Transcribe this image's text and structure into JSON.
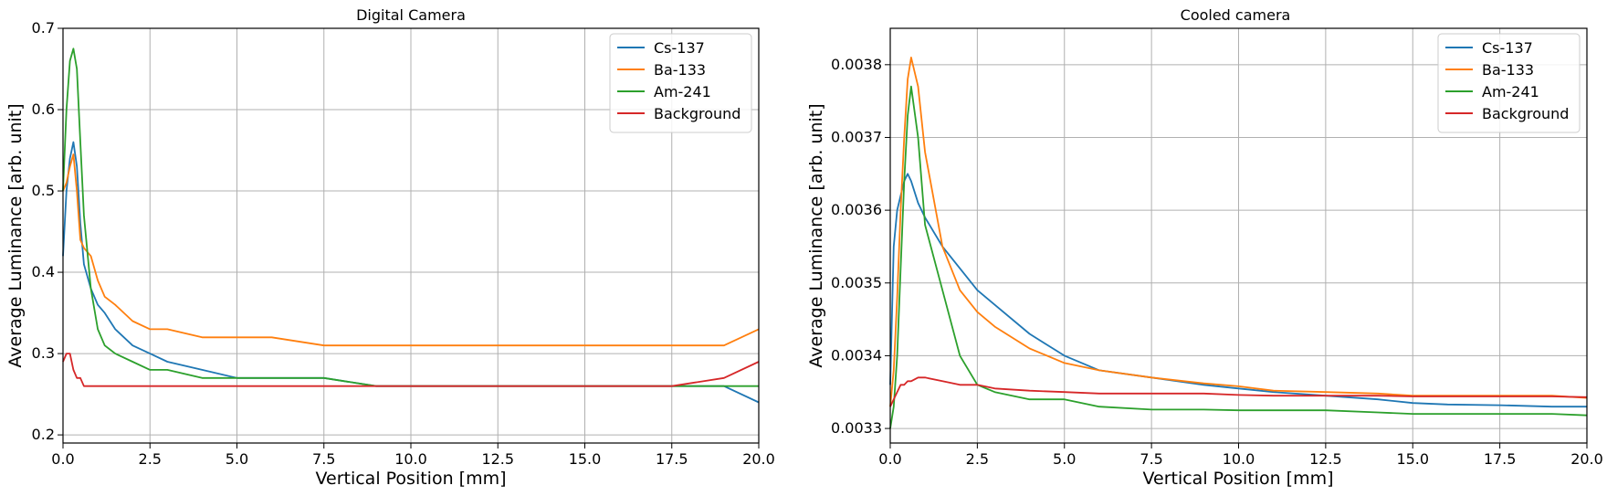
{
  "chart_data": [
    {
      "type": "line",
      "title": "Digital Camera",
      "xlabel": "Vertical Position [mm]",
      "ylabel": "Average Luminance [arb. unit]",
      "xlim": [
        0,
        20
      ],
      "ylim": [
        0.19,
        0.7
      ],
      "xticks": [
        "0.0",
        "2.5",
        "5.0",
        "7.5",
        "10.0",
        "12.5",
        "15.0",
        "17.5",
        "20.0"
      ],
      "yticks": [
        "0.2",
        "0.3",
        "0.4",
        "0.5",
        "0.6",
        "0.7"
      ],
      "xtick_values": [
        0,
        2.5,
        5,
        7.5,
        10,
        12.5,
        15,
        17.5,
        20
      ],
      "ytick_values": [
        0.2,
        0.3,
        0.4,
        0.5,
        0.6,
        0.7
      ],
      "grid": true,
      "legend": "top-right",
      "series": [
        {
          "name": "Cs-137",
          "color": "#1f77b4",
          "x": [
            0,
            0.1,
            0.2,
            0.3,
            0.4,
            0.5,
            0.6,
            0.8,
            1.0,
            1.2,
            1.5,
            2.0,
            2.5,
            3.0,
            4.0,
            5.0,
            6.0,
            7.5,
            9.0,
            10.0,
            11.0,
            12.5,
            14.0,
            15.0,
            16.0,
            17.5,
            19.0,
            20.0
          ],
          "y": [
            0.42,
            0.5,
            0.54,
            0.56,
            0.53,
            0.46,
            0.41,
            0.38,
            0.36,
            0.35,
            0.33,
            0.31,
            0.3,
            0.29,
            0.28,
            0.27,
            0.27,
            0.27,
            0.26,
            0.26,
            0.26,
            0.26,
            0.26,
            0.26,
            0.26,
            0.26,
            0.26,
            0.24
          ]
        },
        {
          "name": "Ba-133",
          "color": "#ff7f0e",
          "x": [
            0,
            0.1,
            0.2,
            0.3,
            0.4,
            0.5,
            0.6,
            0.8,
            1.0,
            1.2,
            1.5,
            2.0,
            2.5,
            3.0,
            4.0,
            5.0,
            6.0,
            7.5,
            9.0,
            10.0,
            11.0,
            12.5,
            14.0,
            15.0,
            16.0,
            17.5,
            19.0,
            20.0
          ],
          "y": [
            0.5,
            0.51,
            0.53,
            0.545,
            0.5,
            0.44,
            0.43,
            0.42,
            0.39,
            0.37,
            0.36,
            0.34,
            0.33,
            0.33,
            0.32,
            0.32,
            0.32,
            0.31,
            0.31,
            0.31,
            0.31,
            0.31,
            0.31,
            0.31,
            0.31,
            0.31,
            0.31,
            0.33
          ]
        },
        {
          "name": "Am-241",
          "color": "#2ca02c",
          "x": [
            0,
            0.1,
            0.2,
            0.3,
            0.4,
            0.5,
            0.6,
            0.8,
            1.0,
            1.2,
            1.5,
            2.0,
            2.5,
            3.0,
            4.0,
            5.0,
            6.0,
            7.5,
            9.0,
            10.0,
            11.0,
            12.5,
            14.0,
            15.0,
            16.0,
            17.5,
            19.0,
            20.0
          ],
          "y": [
            0.5,
            0.6,
            0.66,
            0.675,
            0.65,
            0.56,
            0.47,
            0.38,
            0.33,
            0.31,
            0.3,
            0.29,
            0.28,
            0.28,
            0.27,
            0.27,
            0.27,
            0.27,
            0.26,
            0.26,
            0.26,
            0.26,
            0.26,
            0.26,
            0.26,
            0.26,
            0.26,
            0.26
          ]
        },
        {
          "name": "Background",
          "color": "#d62728",
          "x": [
            0,
            0.1,
            0.2,
            0.3,
            0.4,
            0.5,
            0.6,
            0.8,
            1.0,
            1.2,
            1.5,
            2.0,
            2.5,
            3.0,
            4.0,
            5.0,
            6.0,
            7.5,
            9.0,
            10.0,
            11.0,
            12.5,
            14.0,
            15.0,
            16.0,
            17.5,
            19.0,
            20.0
          ],
          "y": [
            0.29,
            0.3,
            0.3,
            0.28,
            0.27,
            0.27,
            0.26,
            0.26,
            0.26,
            0.26,
            0.26,
            0.26,
            0.26,
            0.26,
            0.26,
            0.26,
            0.26,
            0.26,
            0.26,
            0.26,
            0.26,
            0.26,
            0.26,
            0.26,
            0.26,
            0.26,
            0.27,
            0.29
          ]
        }
      ]
    },
    {
      "type": "line",
      "title": "Cooled camera",
      "xlabel": "Vertical Position [mm]",
      "ylabel": "Average Luminance [arb. unit]",
      "xlim": [
        0,
        20
      ],
      "ylim": [
        0.00328,
        0.00385
      ],
      "xticks": [
        "0.0",
        "2.5",
        "5.0",
        "7.5",
        "10.0",
        "12.5",
        "15.0",
        "17.5",
        "20.0"
      ],
      "yticks": [
        "0.0033",
        "0.0034",
        "0.0035",
        "0.0036",
        "0.0037",
        "0.0038"
      ],
      "xtick_values": [
        0,
        2.5,
        5,
        7.5,
        10,
        12.5,
        15,
        17.5,
        20
      ],
      "ytick_values": [
        0.0033,
        0.0034,
        0.0035,
        0.0036,
        0.0037,
        0.0038
      ],
      "grid": true,
      "legend": "top-right",
      "series": [
        {
          "name": "Cs-137",
          "color": "#1f77b4",
          "x": [
            0,
            0.1,
            0.2,
            0.3,
            0.4,
            0.5,
            0.6,
            0.8,
            1.0,
            1.5,
            2.0,
            2.5,
            3.0,
            4.0,
            5.0,
            6.0,
            7.5,
            9.0,
            10.0,
            11.0,
            12.5,
            14.0,
            15.0,
            16.0,
            17.5,
            19.0,
            20.0
          ],
          "y": [
            0.00336,
            0.00355,
            0.0036,
            0.00362,
            0.00364,
            0.00365,
            0.00364,
            0.00361,
            0.00359,
            0.00355,
            0.00352,
            0.00349,
            0.00347,
            0.00343,
            0.0034,
            0.00338,
            0.00337,
            0.00336,
            0.003355,
            0.00335,
            0.003345,
            0.00334,
            0.003335,
            0.003333,
            0.003332,
            0.00333,
            0.00333
          ]
        },
        {
          "name": "Ba-133",
          "color": "#ff7f0e",
          "x": [
            0,
            0.1,
            0.2,
            0.3,
            0.4,
            0.5,
            0.6,
            0.8,
            1.0,
            1.5,
            2.0,
            2.5,
            3.0,
            4.0,
            5.0,
            6.0,
            7.5,
            9.0,
            10.0,
            11.0,
            12.5,
            14.0,
            15.0,
            16.0,
            17.5,
            19.0,
            20.0
          ],
          "y": [
            0.00333,
            0.00338,
            0.00348,
            0.0036,
            0.0037,
            0.00378,
            0.00381,
            0.00377,
            0.00368,
            0.00355,
            0.00349,
            0.00346,
            0.00344,
            0.00341,
            0.00339,
            0.00338,
            0.00337,
            0.003362,
            0.003358,
            0.003352,
            0.00335,
            0.003348,
            0.003345,
            0.003345,
            0.003345,
            0.003345,
            0.003342
          ]
        },
        {
          "name": "Am-241",
          "color": "#2ca02c",
          "x": [
            0,
            0.1,
            0.2,
            0.3,
            0.4,
            0.5,
            0.6,
            0.8,
            1.0,
            1.5,
            2.0,
            2.5,
            3.0,
            4.0,
            5.0,
            6.0,
            7.5,
            9.0,
            10.0,
            11.0,
            12.5,
            14.0,
            15.0,
            16.0,
            17.5,
            19.0,
            20.0
          ],
          "y": [
            0.0033,
            0.00333,
            0.0034,
            0.00352,
            0.00364,
            0.00373,
            0.00377,
            0.0037,
            0.00358,
            0.00349,
            0.0034,
            0.00336,
            0.00335,
            0.00334,
            0.00334,
            0.00333,
            0.003326,
            0.003326,
            0.003325,
            0.003325,
            0.003325,
            0.003322,
            0.00332,
            0.00332,
            0.00332,
            0.00332,
            0.003318
          ]
        },
        {
          "name": "Background",
          "color": "#d62728",
          "x": [
            0,
            0.1,
            0.2,
            0.3,
            0.4,
            0.5,
            0.6,
            0.8,
            1.0,
            1.5,
            2.0,
            2.5,
            3.0,
            4.0,
            5.0,
            6.0,
            7.5,
            9.0,
            10.0,
            11.0,
            12.5,
            14.0,
            15.0,
            16.0,
            17.5,
            19.0,
            20.0
          ],
          "y": [
            0.00333,
            0.00334,
            0.00335,
            0.00336,
            0.00336,
            0.003365,
            0.003365,
            0.00337,
            0.00337,
            0.003365,
            0.00336,
            0.00336,
            0.003355,
            0.003352,
            0.00335,
            0.003348,
            0.003348,
            0.003348,
            0.003346,
            0.003345,
            0.003345,
            0.003345,
            0.003344,
            0.003344,
            0.003344,
            0.003344,
            0.003343
          ]
        }
      ]
    }
  ]
}
